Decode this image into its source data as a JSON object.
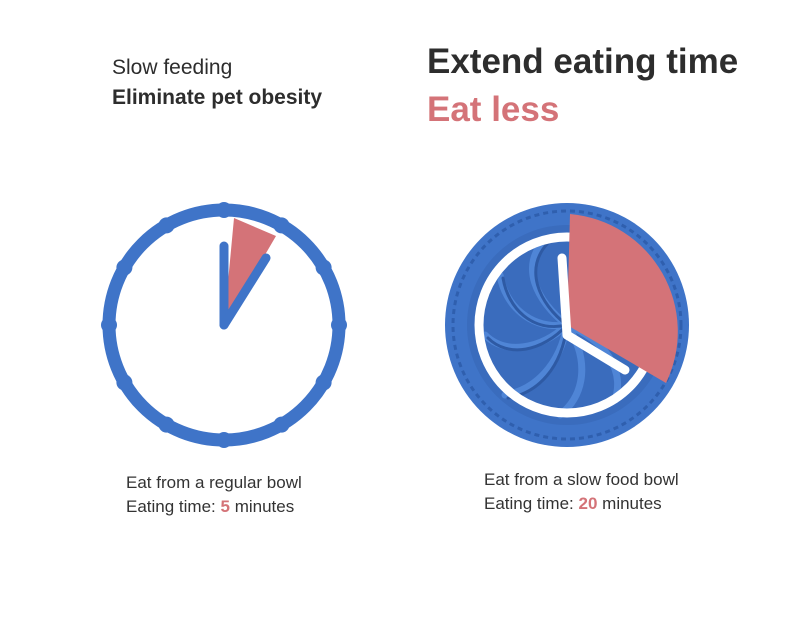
{
  "header": {
    "line1": "Slow feeding",
    "line2": "Eliminate pet obesity",
    "title": "Extend eating time",
    "accent": "Eat less"
  },
  "regular_bowl": {
    "caption": "Eat from a regular bowl",
    "time_label": "Eating time:",
    "time_value": "5",
    "time_unit": "minutes"
  },
  "slow_bowl": {
    "caption": "Eat from a slow food bowl",
    "time_label": "Eating time:",
    "time_value": "20",
    "time_unit": "minutes"
  },
  "colors": {
    "blue": "#3f74c8",
    "accent": "#d47378",
    "text": "#2d2d2d"
  },
  "icons": [
    "clock-icon",
    "slow-feeder-bowl-icon"
  ]
}
